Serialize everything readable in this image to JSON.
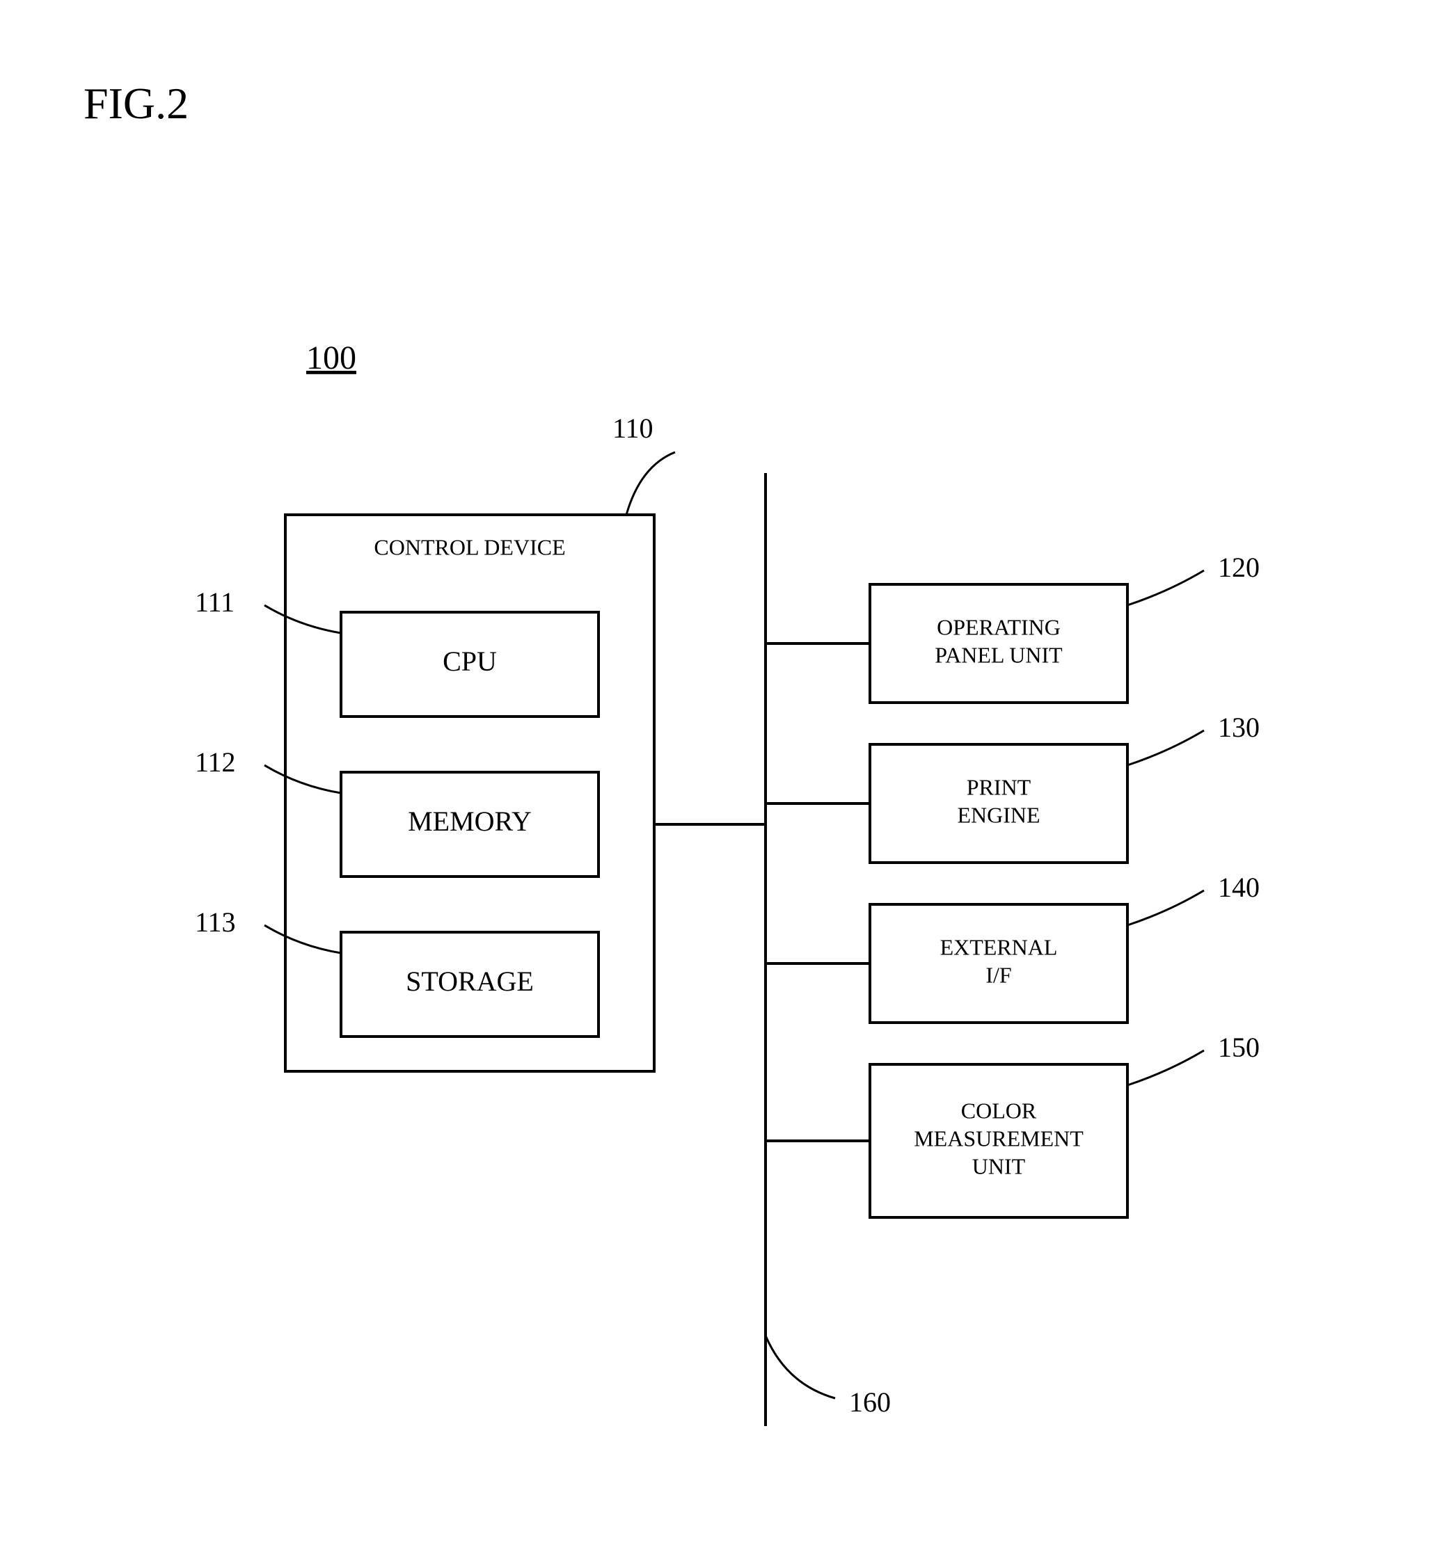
{
  "figure": {
    "title": "FIG.2",
    "system_ref": "100",
    "bus_ref": "160",
    "title_fontsize": 64,
    "ref_fontsize": 40,
    "box_fontsize": 32,
    "line_color": "#000000",
    "stroke_width": 4,
    "background": "#ffffff",
    "font_family": "Times New Roman, serif"
  },
  "control_device": {
    "ref": "110",
    "title": "CONTROL DEVICE",
    "blocks": [
      {
        "ref": "111",
        "label": "CPU"
      },
      {
        "ref": "112",
        "label": "MEMORY"
      },
      {
        "ref": "113",
        "label": "STORAGE"
      }
    ]
  },
  "peripherals": [
    {
      "ref": "120",
      "lines": [
        "OPERATING",
        "PANEL UNIT"
      ]
    },
    {
      "ref": "130",
      "lines": [
        "PRINT",
        "ENGINE"
      ]
    },
    {
      "ref": "140",
      "lines": [
        "EXTERNAL",
        "I/F"
      ]
    },
    {
      "ref": "150",
      "lines": [
        "COLOR",
        "MEASUREMENT",
        "UNIT"
      ]
    }
  ]
}
